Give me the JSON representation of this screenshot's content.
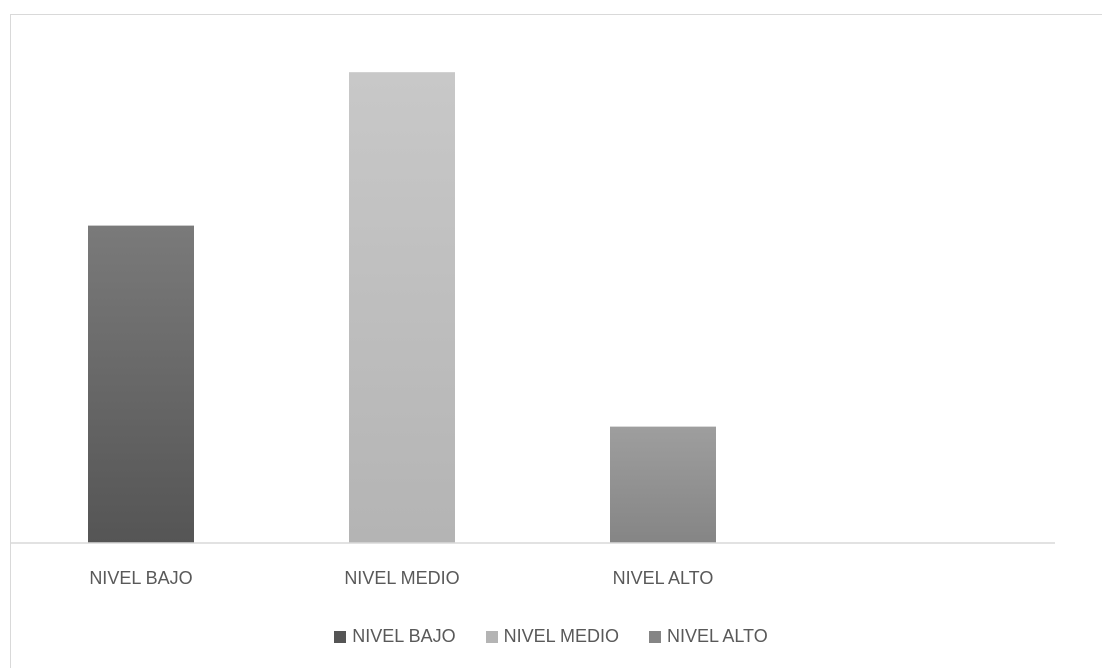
{
  "chart_data": {
    "type": "bar",
    "categories": [
      "NIVEL BAJO",
      "NIVEL MEDIO",
      "NIVEL ALTO"
    ],
    "values": [
      0.6,
      0.89,
      0.22
    ],
    "title": "",
    "xlabel": "",
    "ylabel": "",
    "ylim": [
      0,
      1
    ],
    "grid": false,
    "legend_position": "bottom",
    "colors": [
      "#555555",
      "#b4b4b4",
      "#858585"
    ],
    "gradient_tops": [
      "#7a7a7a",
      "#c8c8c8",
      "#9e9e9e"
    ]
  },
  "legend": {
    "items": [
      {
        "label": "NIVEL BAJO",
        "color": "#555555"
      },
      {
        "label": "NIVEL MEDIO",
        "color": "#b4b4b4"
      },
      {
        "label": "NIVEL ALTO",
        "color": "#858585"
      }
    ]
  }
}
